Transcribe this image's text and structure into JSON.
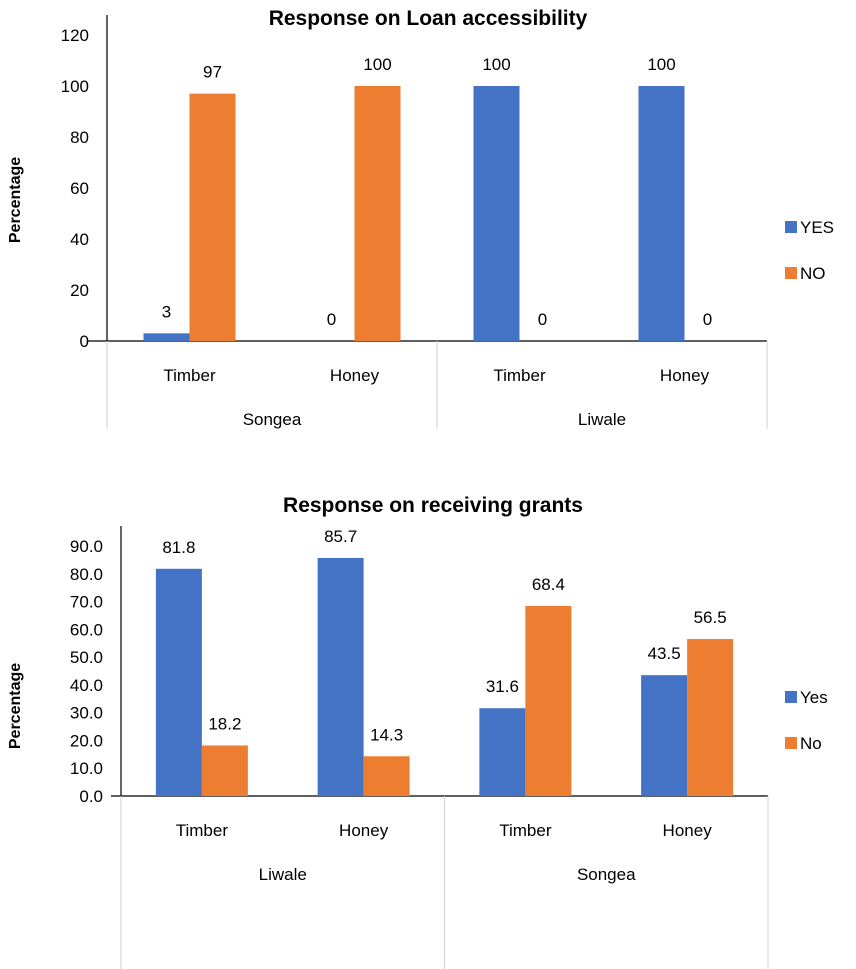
{
  "colors": {
    "yes": "#4472C4",
    "no": "#ED7D31"
  },
  "chart_data": [
    {
      "type": "bar",
      "title": "Response on Loan accessibility",
      "xlabel": "",
      "ylabel": "Percentage",
      "ylim": [
        0,
        120
      ],
      "yticks": [
        "0",
        "20",
        "40",
        "60",
        "80",
        "100",
        "120"
      ],
      "categories": [
        "Timber",
        "Honey",
        "Timber",
        "Honey"
      ],
      "groups": [
        {
          "label": "Songea",
          "span": [
            0,
            1
          ]
        },
        {
          "label": "Liwale",
          "span": [
            2,
            3
          ]
        }
      ],
      "series": [
        {
          "name": "YES",
          "values": [
            3,
            0,
            100,
            100
          ],
          "labels": [
            "3",
            "0",
            "100",
            "100"
          ]
        },
        {
          "name": "NO",
          "values": [
            97,
            100,
            0,
            0
          ],
          "labels": [
            "97",
            "100",
            "0",
            "0"
          ]
        }
      ],
      "legend": "right",
      "grid": false
    },
    {
      "type": "bar",
      "title": "Response on receiving grants",
      "xlabel": "",
      "ylabel": "Percentage",
      "ylim": [
        0,
        90
      ],
      "yticks": [
        "0.0",
        "10.0",
        "20.0",
        "30.0",
        "40.0",
        "50.0",
        "60.0",
        "70.0",
        "80.0",
        "90.0"
      ],
      "categories": [
        "Timber",
        "Honey",
        "Timber",
        "Honey"
      ],
      "groups": [
        {
          "label": "Liwale",
          "span": [
            0,
            1
          ]
        },
        {
          "label": "Songea",
          "span": [
            2,
            3
          ]
        }
      ],
      "series": [
        {
          "name": "Yes",
          "values": [
            81.8,
            85.7,
            31.6,
            43.5
          ],
          "labels": [
            "81.8",
            "85.7",
            "31.6",
            "43.5"
          ]
        },
        {
          "name": "No",
          "values": [
            18.2,
            14.3,
            68.4,
            56.5
          ],
          "labels": [
            "18.2",
            "14.3",
            "68.4",
            "56.5"
          ]
        }
      ],
      "legend": "right",
      "grid": false
    }
  ]
}
